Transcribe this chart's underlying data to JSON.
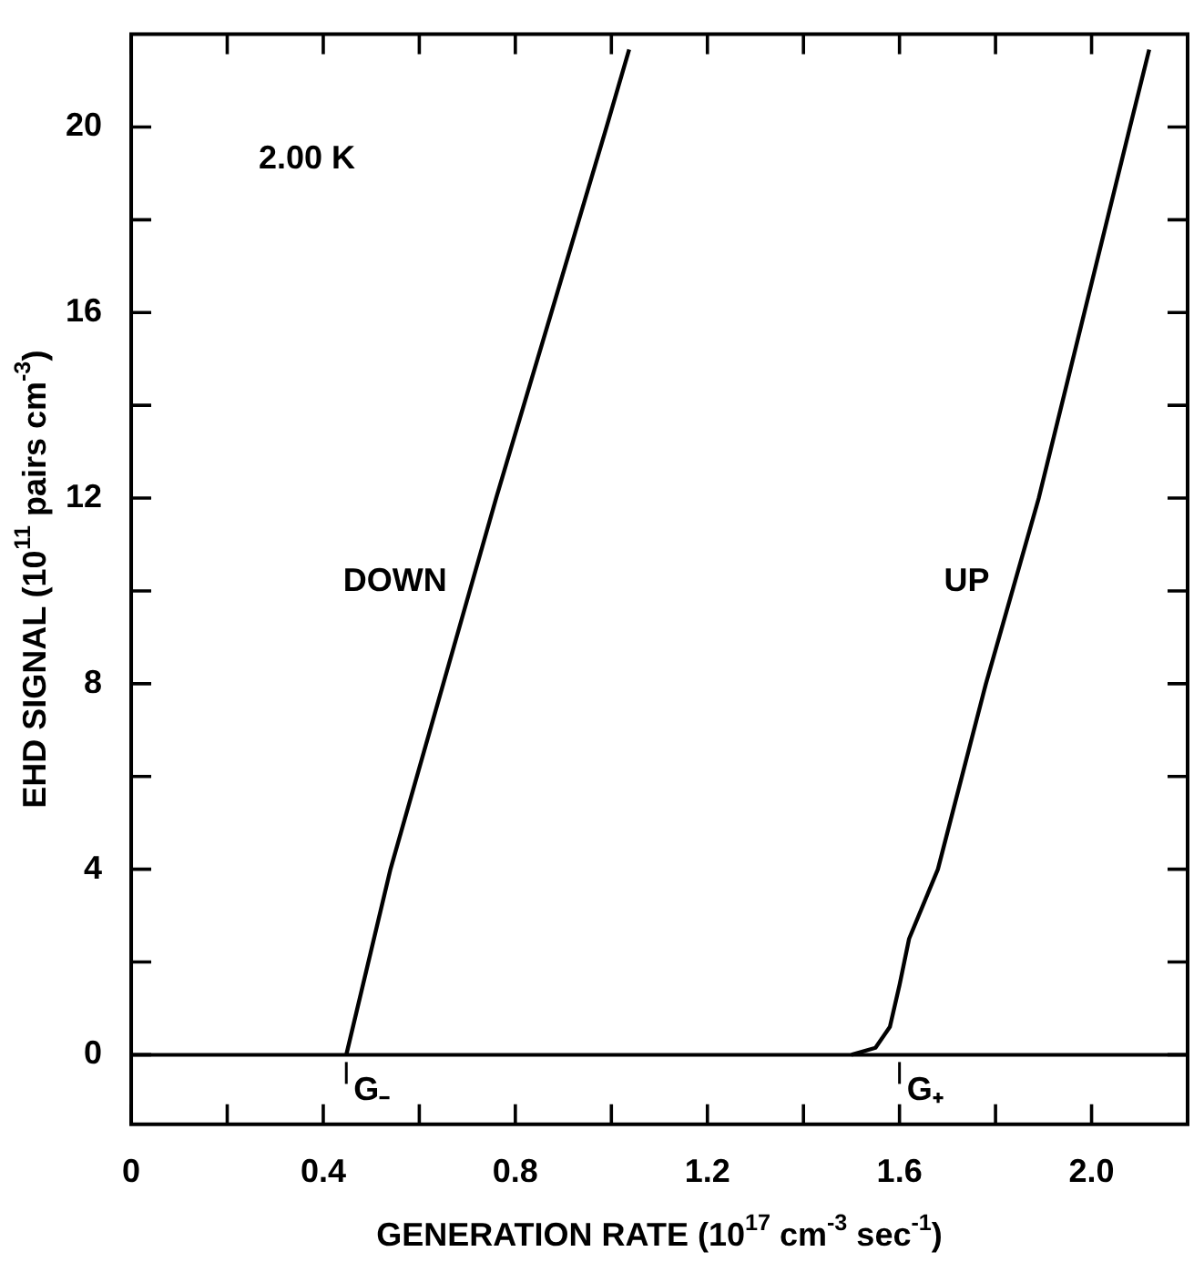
{
  "chart_data": {
    "type": "line",
    "xlabel": "GENERATION RATE (10$^{17}$ cm$^{-3}$ sec$^{-1}$)",
    "ylabel": "EHD SIGNAL (10$^{11}$ pairs cm$^{-3}$)",
    "series": [
      {
        "name": "DOWN",
        "color": "#000000",
        "x": [
          0.448,
          0.54,
          0.65,
          0.76,
          0.875,
          0.99,
          1.037
        ],
        "values": [
          0,
          4,
          8,
          12,
          16,
          20,
          21.67
        ]
      },
      {
        "name": "UP",
        "color": "#000000",
        "x": [
          1.5,
          1.55,
          1.58,
          1.6,
          1.62,
          1.68,
          1.78,
          1.89,
          1.985,
          2.08,
          2.12
        ],
        "values": [
          0,
          0.15,
          0.6,
          1.5,
          2.5,
          4,
          8,
          12,
          16,
          20,
          21.67
        ]
      }
    ],
    "xlim": [
      0,
      2.2
    ],
    "ylim": [
      -1.5,
      22
    ],
    "xticks": [
      0,
      {
        "value": 0.2,
        "label": null
      },
      0.4,
      {
        "value": 0.6,
        "label": null
      },
      0.8,
      {
        "value": 1.0,
        "label": null
      },
      1.2,
      {
        "value": 1.4,
        "label": null
      },
      1.6,
      {
        "value": 1.8,
        "label": null
      },
      {
        "value": 2.0,
        "label": "2.0"
      }
    ],
    "yticks": [
      0,
      {
        "value": 2,
        "label": null
      },
      4,
      {
        "value": 6,
        "label": null
      },
      8,
      {
        "value": 10,
        "label": null
      },
      12,
      {
        "value": 14,
        "label": null
      },
      16,
      {
        "value": 18,
        "label": null
      },
      20
    ],
    "ref_lines": [
      {
        "axis": "y",
        "value": 0,
        "color": "#000000"
      }
    ],
    "annotations": [
      "2.00 K",
      {
        "text": "G₋",
        "x": 0.448,
        "y": 0
      },
      {
        "text": "G₊",
        "x": 1.6,
        "y": 0
      }
    ],
    "grid": false,
    "legend": false,
    "marker": "none",
    "line_style": "solid"
  }
}
